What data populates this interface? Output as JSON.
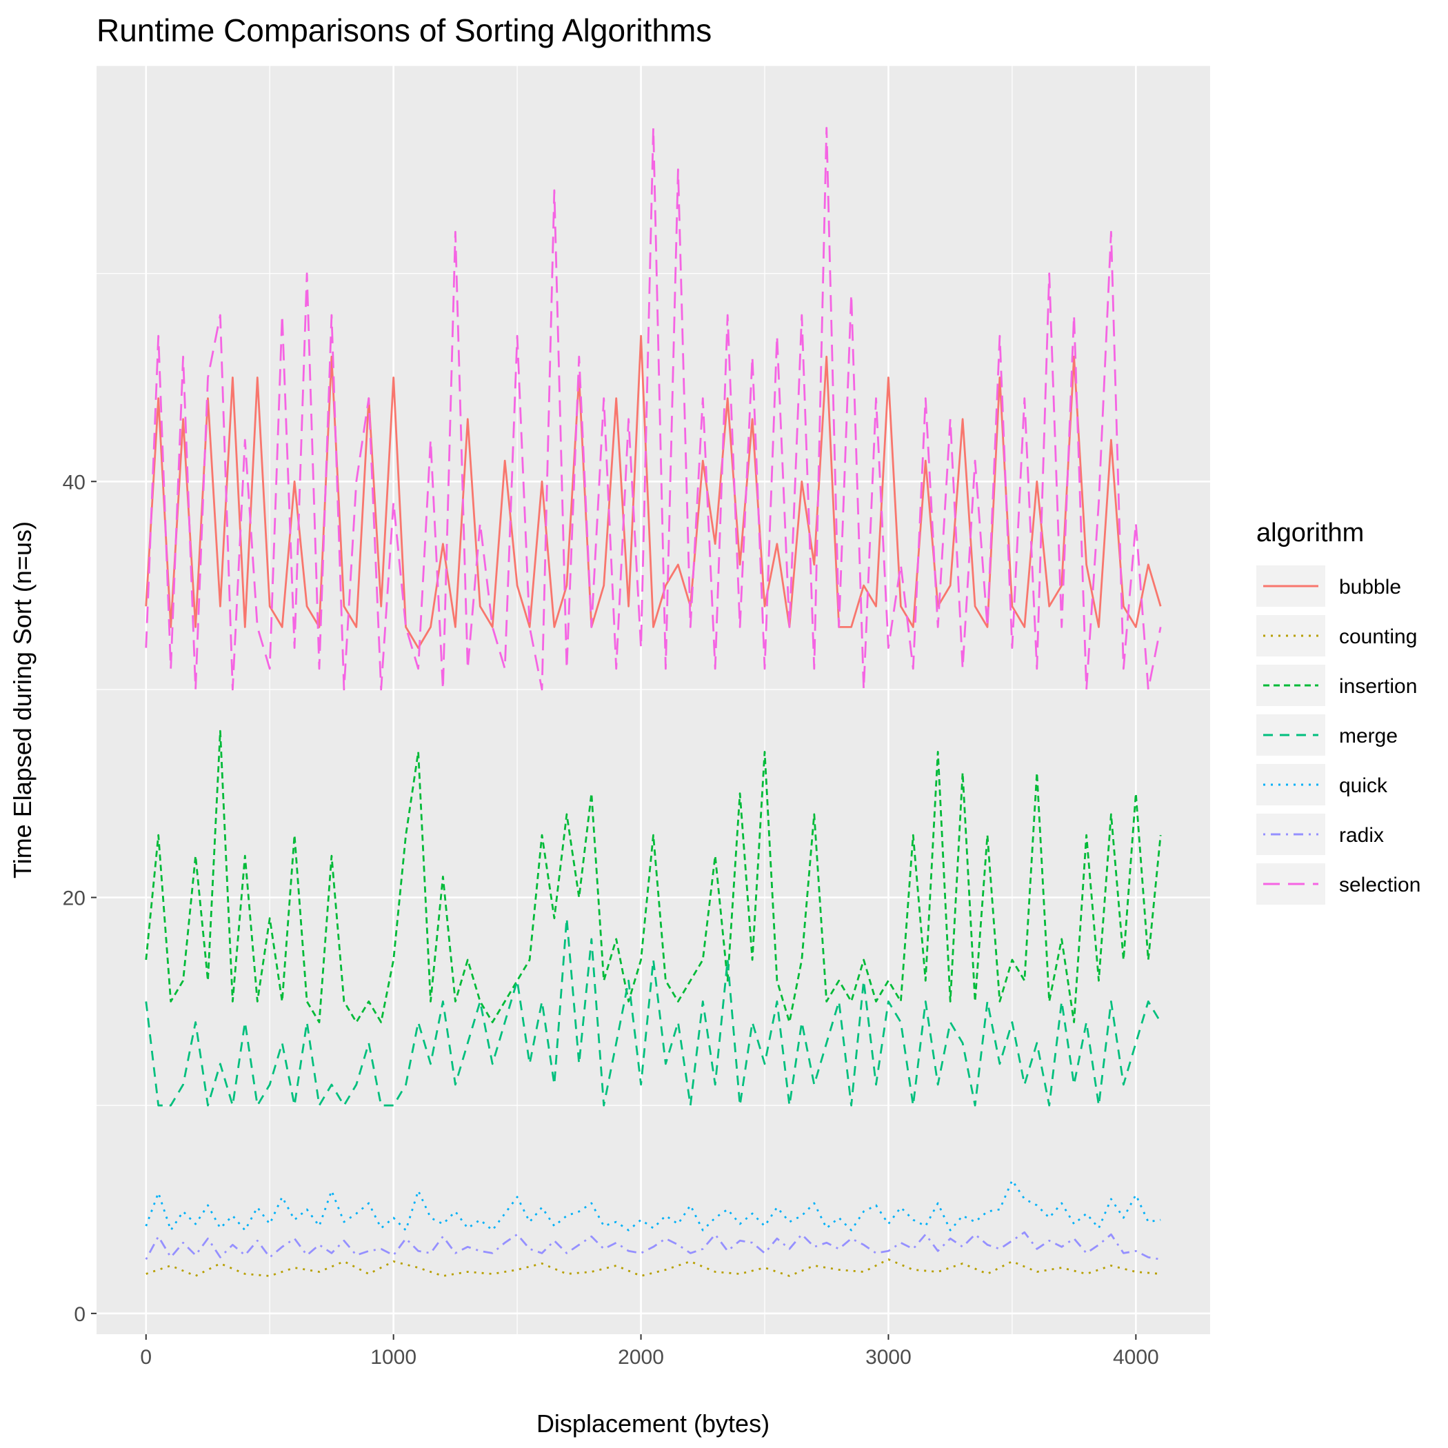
{
  "chart_data": {
    "type": "line",
    "title": "Runtime Comparisons of Sorting Algorithms",
    "xlabel": "Displacement (bytes)",
    "ylabel": "Time Elapsed during Sort (n=us)",
    "xlim": [
      -200,
      4300
    ],
    "ylim": [
      -1,
      60
    ],
    "x_ticks": [
      0,
      1000,
      2000,
      3000,
      4000
    ],
    "y_ticks": [
      0,
      20,
      40
    ],
    "grid": true,
    "legend": {
      "title": "algorithm",
      "placement": "right"
    },
    "series": [
      {
        "name": "bubble",
        "color": "#F8766D",
        "dash": "solid",
        "x": [
          0,
          50,
          100,
          150,
          200,
          250,
          300,
          350,
          400,
          450,
          500,
          550,
          600,
          650,
          700,
          750,
          800,
          850,
          900,
          950,
          1000,
          1050,
          1100,
          1150,
          1200,
          1250,
          1300,
          1350,
          1400,
          1450,
          1500,
          1550,
          1600,
          1650,
          1700,
          1750,
          1800,
          1850,
          1900,
          1950,
          2000,
          2050,
          2100,
          2150,
          2200,
          2250,
          2300,
          2350,
          2400,
          2450,
          2500,
          2550,
          2600,
          2650,
          2700,
          2750,
          2800,
          2850,
          2900,
          2950,
          3000,
          3050,
          3100,
          3150,
          3200,
          3250,
          3300,
          3350,
          3400,
          3450,
          3500,
          3550,
          3600,
          3650,
          3700,
          3750,
          3800,
          3850,
          3900,
          3950,
          4000,
          4050,
          4100
        ],
        "y": [
          34,
          44,
          33,
          43,
          33,
          44,
          34,
          45,
          33,
          45,
          34,
          33,
          40,
          34,
          33,
          46,
          34,
          33,
          44,
          34,
          45,
          33,
          32,
          33,
          37,
          33,
          43,
          34,
          33,
          41,
          35,
          33,
          40,
          33,
          35,
          45,
          33,
          35,
          44,
          34,
          47,
          33,
          35,
          36,
          34,
          41,
          37,
          44,
          36,
          43,
          34,
          37,
          33,
          40,
          36,
          46,
          33,
          33,
          35,
          34,
          45,
          34,
          33,
          41,
          34,
          35,
          43,
          34,
          33,
          45,
          34,
          33,
          40,
          34,
          35,
          46,
          36,
          33,
          42,
          34,
          33,
          36,
          34
        ]
      },
      {
        "name": "counting",
        "color": "#B79F00",
        "dash": "dotted",
        "x": [
          0,
          100,
          200,
          300,
          400,
          500,
          600,
          700,
          800,
          900,
          1000,
          1100,
          1200,
          1300,
          1400,
          1500,
          1600,
          1700,
          1800,
          1900,
          2000,
          2100,
          2200,
          2300,
          2400,
          2500,
          2600,
          2700,
          2800,
          2900,
          3000,
          3100,
          3200,
          3300,
          3400,
          3500,
          3600,
          3700,
          3800,
          3900,
          4000,
          4100
        ],
        "y": [
          1.9,
          2.3,
          1.8,
          2.4,
          1.9,
          1.8,
          2.2,
          2.0,
          2.5,
          1.9,
          2.5,
          2.2,
          1.8,
          2.0,
          1.9,
          2.1,
          2.4,
          1.9,
          2.0,
          2.3,
          1.8,
          2.1,
          2.5,
          2.0,
          1.9,
          2.2,
          1.8,
          2.3,
          2.1,
          2.0,
          2.6,
          2.1,
          2.0,
          2.4,
          1.9,
          2.5,
          2.0,
          2.2,
          1.9,
          2.3,
          2.0,
          1.9
        ]
      },
      {
        "name": "insertion",
        "color": "#00BA38",
        "dash": "dashed-short",
        "x": [
          0,
          50,
          100,
          150,
          200,
          250,
          300,
          350,
          400,
          450,
          500,
          550,
          600,
          650,
          700,
          750,
          800,
          850,
          900,
          950,
          1000,
          1050,
          1100,
          1150,
          1200,
          1250,
          1300,
          1350,
          1400,
          1450,
          1500,
          1550,
          1600,
          1650,
          1700,
          1750,
          1800,
          1850,
          1900,
          1950,
          2000,
          2050,
          2100,
          2150,
          2200,
          2250,
          2300,
          2350,
          2400,
          2450,
          2500,
          2550,
          2600,
          2650,
          2700,
          2750,
          2800,
          2850,
          2900,
          2950,
          3000,
          3050,
          3100,
          3150,
          3200,
          3250,
          3300,
          3350,
          3400,
          3450,
          3500,
          3550,
          3600,
          3650,
          3700,
          3750,
          3800,
          3850,
          3900,
          3950,
          4000,
          4050,
          4100
        ],
        "y": [
          17,
          23,
          15,
          16,
          22,
          16,
          28,
          15,
          22,
          15,
          19,
          15,
          23,
          15,
          14,
          22,
          15,
          14,
          15,
          14,
          17,
          23,
          27,
          15,
          21,
          15,
          17,
          15,
          14,
          15,
          16,
          17,
          23,
          19,
          24,
          20,
          25,
          16,
          18,
          15,
          17,
          23,
          16,
          15,
          16,
          17,
          22,
          16,
          25,
          17,
          27,
          16,
          14,
          17,
          24,
          15,
          16,
          15,
          17,
          15,
          16,
          15,
          23,
          16,
          27,
          15,
          26,
          15,
          23,
          15,
          17,
          16,
          26,
          15,
          18,
          14,
          23,
          16,
          24,
          17,
          25,
          17,
          23
        ]
      },
      {
        "name": "merge",
        "color": "#00BF7D",
        "dash": "dashed",
        "x": [
          0,
          50,
          100,
          150,
          200,
          250,
          300,
          350,
          400,
          450,
          500,
          550,
          600,
          650,
          700,
          750,
          800,
          850,
          900,
          950,
          1000,
          1050,
          1100,
          1150,
          1200,
          1250,
          1300,
          1350,
          1400,
          1450,
          1500,
          1550,
          1600,
          1650,
          1700,
          1750,
          1800,
          1850,
          1900,
          1950,
          2000,
          2050,
          2100,
          2150,
          2200,
          2250,
          2300,
          2350,
          2400,
          2450,
          2500,
          2550,
          2600,
          2650,
          2700,
          2750,
          2800,
          2850,
          2900,
          2950,
          3000,
          3050,
          3100,
          3150,
          3200,
          3250,
          3300,
          3350,
          3400,
          3450,
          3500,
          3550,
          3600,
          3650,
          3700,
          3750,
          3800,
          3850,
          3900,
          3950,
          4000,
          4050,
          4100
        ],
        "y": [
          15,
          10,
          10,
          11,
          14,
          10,
          12,
          10,
          14,
          10,
          11,
          13,
          10,
          14,
          10,
          11,
          10,
          11,
          13,
          10,
          10,
          11,
          14,
          12,
          15,
          11,
          13,
          15,
          12,
          14,
          16,
          12,
          15,
          11,
          19,
          12,
          18,
          10,
          13,
          16,
          11,
          17,
          12,
          14,
          10,
          15,
          11,
          17,
          10,
          14,
          12,
          15,
          10,
          14,
          11,
          13,
          15,
          10,
          16,
          11,
          15,
          14,
          10,
          15,
          11,
          14,
          13,
          10,
          15,
          12,
          14,
          11,
          13,
          10,
          15,
          11,
          14,
          10,
          15,
          11,
          13,
          15,
          14
        ]
      },
      {
        "name": "quick",
        "color": "#00B0F6",
        "dash": "dotted",
        "x": [
          0,
          50,
          100,
          150,
          200,
          250,
          300,
          350,
          400,
          450,
          500,
          550,
          600,
          650,
          700,
          750,
          800,
          850,
          900,
          950,
          1000,
          1050,
          1100,
          1150,
          1200,
          1250,
          1300,
          1350,
          1400,
          1450,
          1500,
          1550,
          1600,
          1650,
          1700,
          1750,
          1800,
          1850,
          1900,
          1950,
          2000,
          2050,
          2100,
          2150,
          2200,
          2250,
          2300,
          2350,
          2400,
          2450,
          2500,
          2550,
          2600,
          2650,
          2700,
          2750,
          2800,
          2850,
          2900,
          2950,
          3000,
          3050,
          3100,
          3150,
          3200,
          3250,
          3300,
          3350,
          3400,
          3450,
          3500,
          3550,
          3600,
          3650,
          3700,
          3750,
          3800,
          3850,
          3900,
          3950,
          4000,
          4050,
          4100
        ],
        "y": [
          4.2,
          5.8,
          4.0,
          4.9,
          4.3,
          5.2,
          4.1,
          4.7,
          4.0,
          5.1,
          4.3,
          5.6,
          4.5,
          5.0,
          4.2,
          5.9,
          4.4,
          4.8,
          5.3,
          4.1,
          4.6,
          4.0,
          5.9,
          4.6,
          4.3,
          4.9,
          4.1,
          4.5,
          4.0,
          4.8,
          5.6,
          4.4,
          5.1,
          4.2,
          4.7,
          4.9,
          5.3,
          4.2,
          4.4,
          4.0,
          4.5,
          4.1,
          4.7,
          4.3,
          5.2,
          4.0,
          4.6,
          5.0,
          4.3,
          4.8,
          4.2,
          5.1,
          4.4,
          4.7,
          5.3,
          4.1,
          4.6,
          4.0,
          4.9,
          5.2,
          4.3,
          5.1,
          4.5,
          4.2,
          5.3,
          4.0,
          4.7,
          4.4,
          4.9,
          5.0,
          6.4,
          5.5,
          5.2,
          4.6,
          5.3,
          4.3,
          4.8,
          4.1,
          5.5,
          4.6,
          5.7,
          4.4,
          4.5
        ]
      },
      {
        "name": "radix",
        "color": "#9590FF",
        "dash": "dotdash",
        "x": [
          0,
          50,
          100,
          150,
          200,
          250,
          300,
          350,
          400,
          450,
          500,
          550,
          600,
          650,
          700,
          750,
          800,
          850,
          900,
          950,
          1000,
          1050,
          1100,
          1150,
          1200,
          1250,
          1300,
          1350,
          1400,
          1450,
          1500,
          1550,
          1600,
          1650,
          1700,
          1750,
          1800,
          1850,
          1900,
          1950,
          2000,
          2050,
          2100,
          2150,
          2200,
          2250,
          2300,
          2350,
          2400,
          2450,
          2500,
          2550,
          2600,
          2650,
          2700,
          2750,
          2800,
          2850,
          2900,
          2950,
          3000,
          3050,
          3100,
          3150,
          3200,
          3250,
          3300,
          3350,
          3400,
          3450,
          3500,
          3550,
          3600,
          3650,
          3700,
          3750,
          3800,
          3850,
          3900,
          3950,
          4000,
          4050,
          4100
        ],
        "y": [
          2.6,
          3.7,
          2.7,
          3.4,
          2.8,
          3.6,
          2.7,
          3.3,
          2.8,
          3.5,
          2.7,
          3.2,
          3.6,
          2.8,
          3.3,
          2.9,
          3.5,
          2.8,
          3.0,
          3.1,
          2.8,
          3.6,
          3.0,
          2.9,
          3.7,
          2.9,
          3.2,
          3.0,
          2.9,
          3.4,
          3.8,
          3.1,
          2.9,
          3.5,
          2.9,
          3.3,
          3.7,
          3.1,
          3.4,
          3.0,
          2.9,
          3.2,
          3.6,
          3.3,
          2.9,
          3.1,
          3.8,
          3.0,
          3.5,
          3.4,
          2.9,
          3.6,
          3.1,
          3.8,
          3.2,
          3.4,
          3.1,
          3.6,
          3.3,
          2.9,
          3.0,
          3.4,
          3.1,
          3.8,
          3.0,
          3.6,
          3.2,
          3.8,
          3.3,
          3.1,
          3.5,
          3.9,
          3.1,
          3.5,
          3.2,
          3.6,
          2.9,
          3.3,
          3.8,
          2.9,
          3.0,
          2.7,
          2.6
        ]
      },
      {
        "name": "selection",
        "color": "#F564E3",
        "dash": "longdash",
        "x": [
          0,
          50,
          100,
          150,
          200,
          250,
          300,
          350,
          400,
          450,
          500,
          550,
          600,
          650,
          700,
          750,
          800,
          850,
          900,
          950,
          1000,
          1050,
          1100,
          1150,
          1200,
          1250,
          1300,
          1350,
          1400,
          1450,
          1500,
          1550,
          1600,
          1650,
          1700,
          1750,
          1800,
          1850,
          1900,
          1950,
          2000,
          2050,
          2100,
          2150,
          2200,
          2250,
          2300,
          2350,
          2400,
          2450,
          2500,
          2550,
          2600,
          2650,
          2700,
          2750,
          2800,
          2850,
          2900,
          2950,
          3000,
          3050,
          3100,
          3150,
          3200,
          3250,
          3300,
          3350,
          3400,
          3450,
          3500,
          3550,
          3600,
          3650,
          3700,
          3750,
          3800,
          3850,
          3900,
          3950,
          4000,
          4050,
          4100
        ],
        "y": [
          32,
          47,
          31,
          46,
          30,
          45,
          48,
          30,
          42,
          33,
          31,
          48,
          32,
          50,
          31,
          48,
          30,
          40,
          44,
          30,
          39,
          33,
          31,
          42,
          30,
          52,
          31,
          38,
          33,
          31,
          47,
          33,
          30,
          54,
          31,
          46,
          33,
          44,
          31,
          43,
          32,
          57,
          31,
          55,
          33,
          44,
          31,
          48,
          33,
          46,
          31,
          47,
          33,
          48,
          31,
          57,
          33,
          49,
          30,
          44,
          32,
          36,
          31,
          44,
          33,
          43,
          31,
          41,
          33,
          47,
          32,
          44,
          31,
          50,
          33,
          48,
          30,
          39,
          52,
          31,
          38,
          30,
          33
        ]
      }
    ]
  }
}
